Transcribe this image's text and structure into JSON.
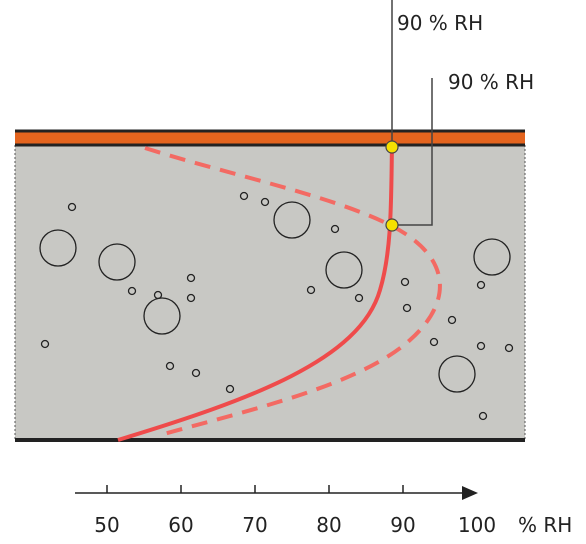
{
  "callouts": [
    {
      "label": "90 % RH"
    },
    {
      "label": "90 % RH"
    }
  ],
  "axis": {
    "ticks": [
      50,
      60,
      70,
      80,
      90,
      100
    ],
    "unit": "% RH"
  }
}
